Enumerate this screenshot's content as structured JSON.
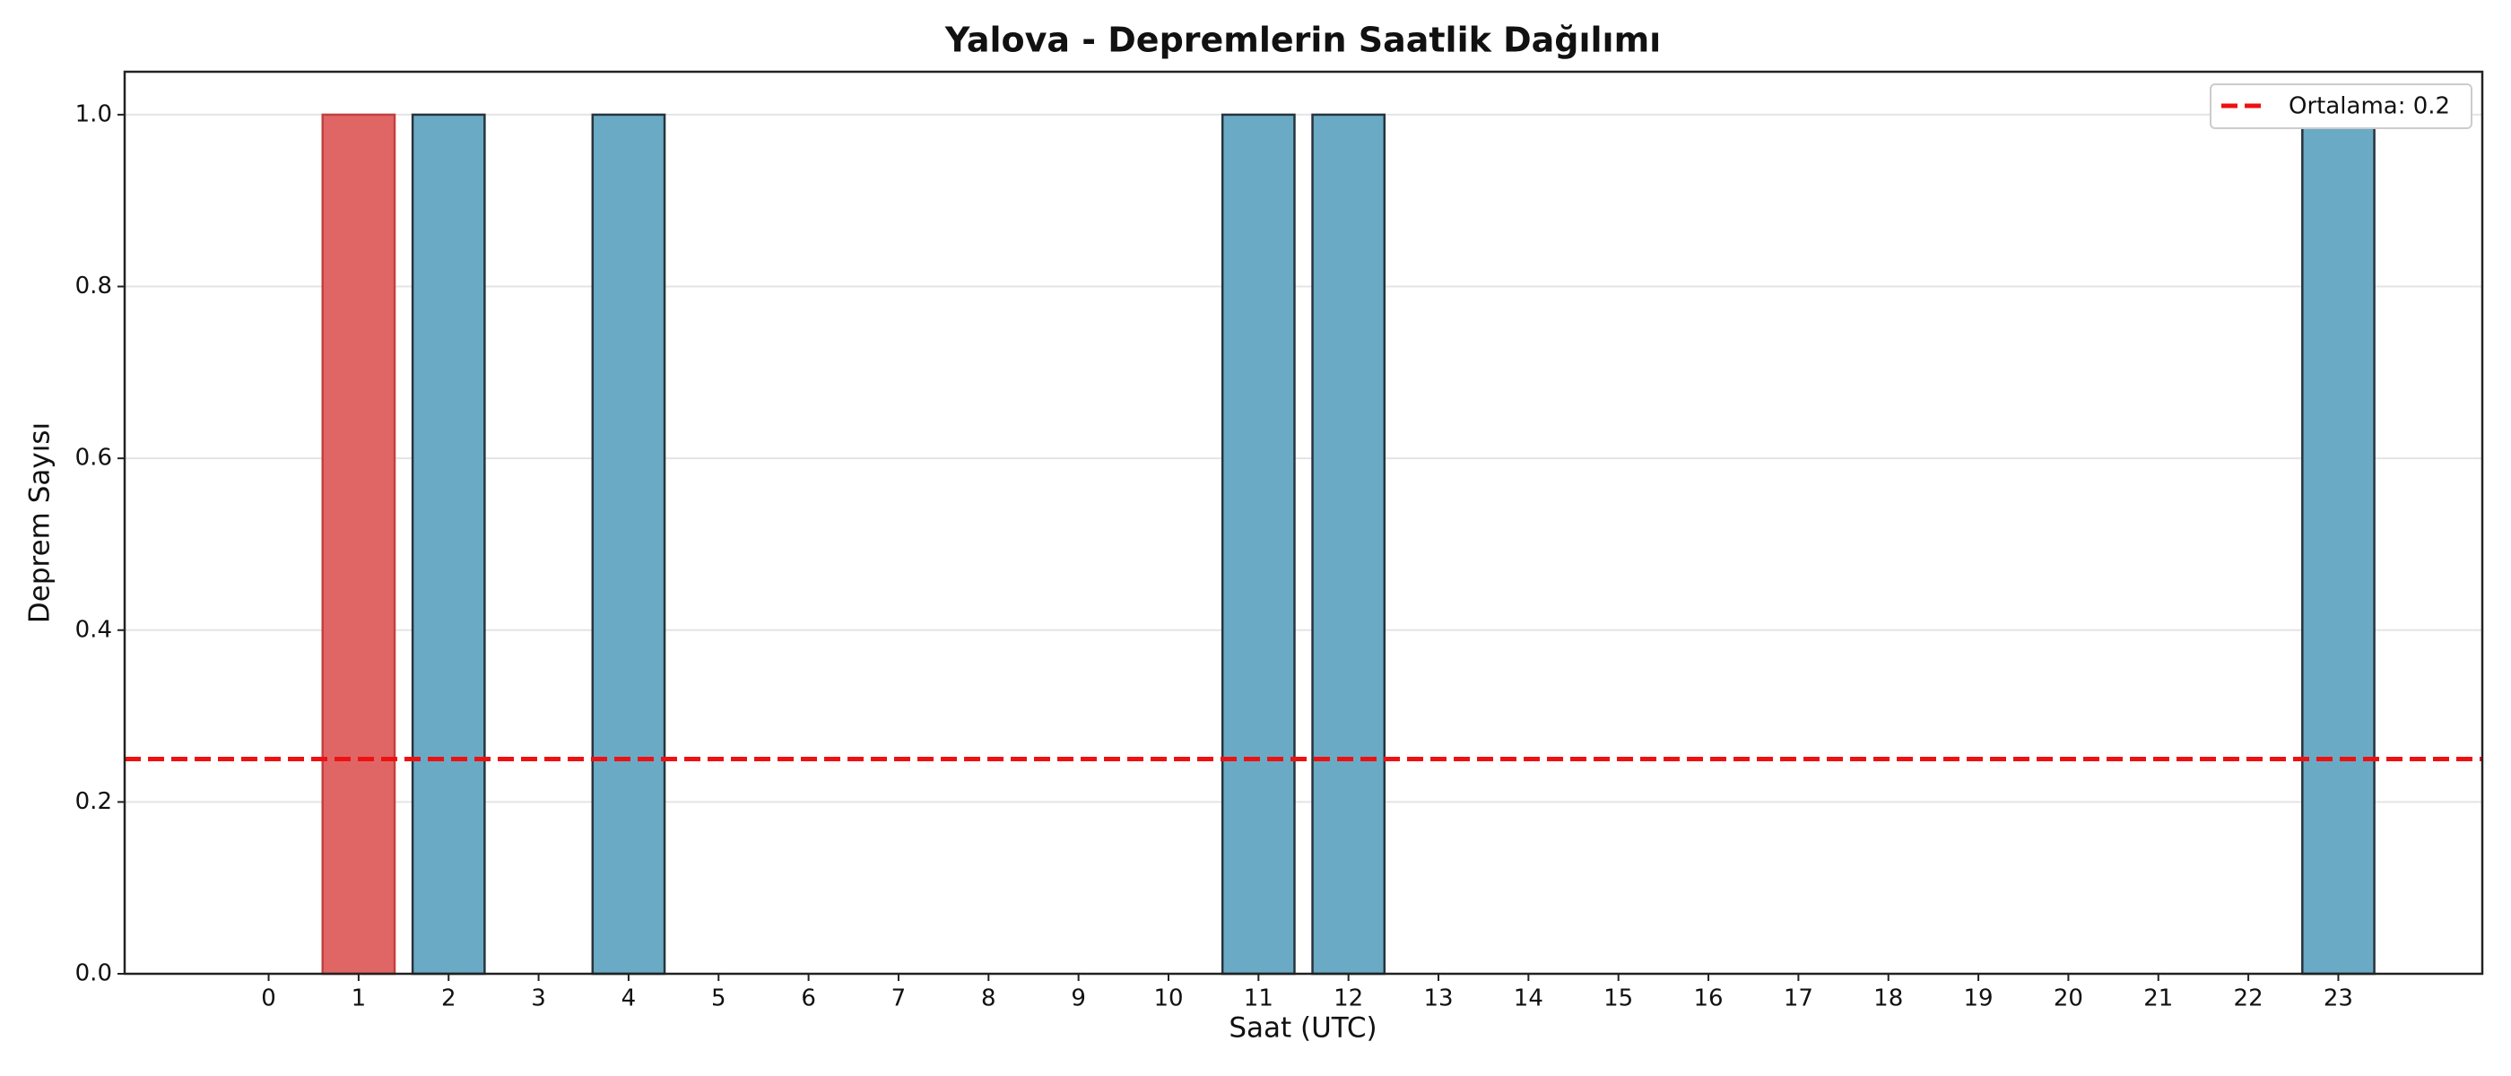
{
  "chart_data": {
    "type": "bar",
    "title": "Yalova - Depremlerin Saatlik Dağılımı",
    "xlabel": "Saat (UTC)",
    "ylabel": "Deprem Sayısı",
    "x": [
      0,
      1,
      2,
      3,
      4,
      5,
      6,
      7,
      8,
      9,
      10,
      11,
      12,
      13,
      14,
      15,
      16,
      17,
      18,
      19,
      20,
      21,
      22,
      23
    ],
    "values": [
      0,
      1,
      1,
      0,
      1,
      0,
      0,
      0,
      0,
      0,
      0,
      1,
      1,
      0,
      0,
      0,
      0,
      0,
      0,
      0,
      0,
      0,
      0,
      1
    ],
    "colors": [
      "#6aaac5",
      "#e06666",
      "#6aaac5",
      "#6aaac5",
      "#6aaac5",
      "#6aaac5",
      "#6aaac5",
      "#6aaac5",
      "#6aaac5",
      "#6aaac5",
      "#6aaac5",
      "#6aaac5",
      "#6aaac5",
      "#6aaac5",
      "#6aaac5",
      "#6aaac5",
      "#6aaac5",
      "#6aaac5",
      "#6aaac5",
      "#6aaac5",
      "#6aaac5",
      "#6aaac5",
      "#6aaac5",
      "#6aaac5"
    ],
    "xlim": [
      -1.6,
      24.6
    ],
    "ylim": [
      0,
      1.05
    ],
    "yticks": [
      {
        "value": 0,
        "label": "0.0"
      },
      0.2,
      0.4,
      0.6,
      0.8,
      {
        "value": 1,
        "label": "1.0"
      }
    ],
    "grid": true,
    "mean_line": {
      "value": 0.25,
      "label": "Ortalama: 0.2",
      "color": "#ee1111"
    },
    "legend": "upper right"
  }
}
